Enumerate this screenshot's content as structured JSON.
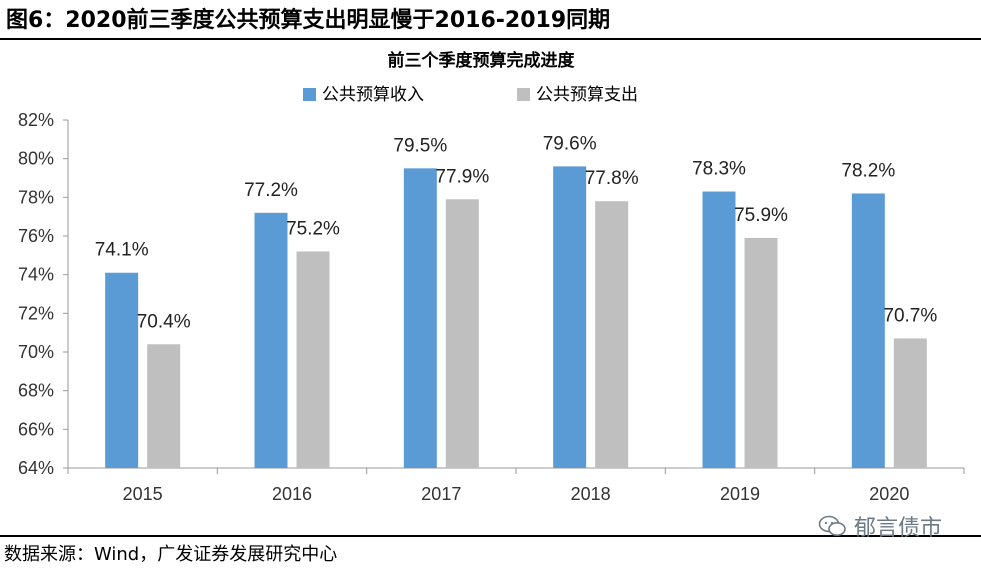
{
  "figure": {
    "title": "图6：2020前三季度公共预算支出明显慢于2016-2019同期",
    "source": "数据来源：Wind，广发证券发展研究中心",
    "watermark": "郁言债市"
  },
  "chart_data": {
    "type": "bar",
    "title": "前三个季度预算完成进度",
    "categories": [
      "2015",
      "2016",
      "2017",
      "2018",
      "2019",
      "2020"
    ],
    "series": [
      {
        "name": "公共预算收入",
        "color": "#5b9bd5",
        "values": [
          74.1,
          77.2,
          79.5,
          79.6,
          78.3,
          78.2
        ],
        "labels": [
          "74.1%",
          "77.2%",
          "79.5%",
          "79.6%",
          "78.3%",
          "78.2%"
        ]
      },
      {
        "name": "公共预算支出",
        "color": "#bfbfbf",
        "values": [
          70.4,
          75.2,
          77.9,
          77.8,
          75.9,
          70.7
        ],
        "labels": [
          "70.4%",
          "75.2%",
          "77.9%",
          "77.8%",
          "75.9%",
          "70.7%"
        ]
      }
    ],
    "ylim": [
      64,
      82
    ],
    "yticks": [
      64,
      66,
      68,
      70,
      72,
      74,
      76,
      78,
      80,
      82
    ],
    "ytick_labels": [
      "64%",
      "66%",
      "68%",
      "70%",
      "72%",
      "74%",
      "76%",
      "78%",
      "80%",
      "82%"
    ],
    "xlabel": "",
    "ylabel": "",
    "grid": false,
    "legend_position": "top"
  }
}
